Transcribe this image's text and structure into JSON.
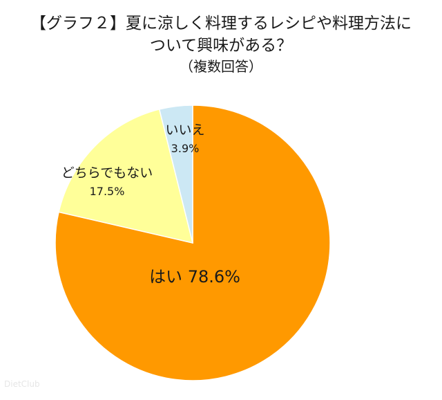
{
  "title_lines": [
    "【グラフ２】夏に涼しく料理するレシピや料理方法に",
    "ついて興味がある？"
  ],
  "subtitle": "（複数回答）",
  "watermark": "DietClub",
  "chart_data": {
    "type": "pie",
    "start": "12 o'clock",
    "direction": "clockwise",
    "slices": [
      {
        "label": "はい",
        "value": 78.6,
        "value_label": "78.6%",
        "color": "#FF9900"
      },
      {
        "label": "どちらでもない",
        "value": 17.5,
        "value_label": "17.5%",
        "color": "#FFFF99"
      },
      {
        "label": "いいえ",
        "value": 3.9,
        "value_label": "3.9%",
        "color": "#CCE8F4"
      }
    ]
  }
}
